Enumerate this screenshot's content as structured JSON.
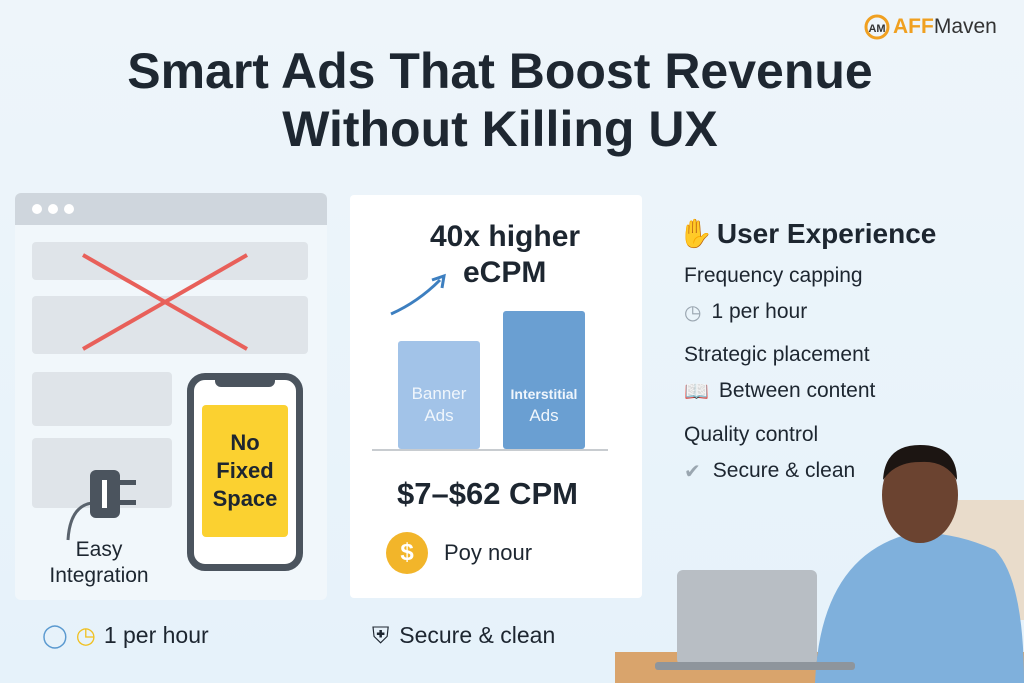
{
  "title": {
    "line1": "Smart Ads That Boost Revenue",
    "line2": "Without Killing UX"
  },
  "logo": {
    "accent": "AFF",
    "rest": "Maven",
    "mark": "AM"
  },
  "left_panel": {
    "phone_label": "No Fixed Space",
    "integration_label1": "Easy",
    "integration_label2": "Integration"
  },
  "middle_card": {
    "headline1": "40x higher",
    "headline2": "eCPM",
    "bars": [
      {
        "label1": "Banner",
        "label2": "Ads"
      },
      {
        "label1": "Interstitial",
        "label2": "Ads"
      }
    ],
    "cpm_range": "$7–$62 CPM",
    "pay_label": "Poy nour"
  },
  "user_experience": {
    "heading": "User Experience",
    "items": [
      {
        "title": "Frequency capping",
        "detail": "1 per hour",
        "icon": "clock-icon"
      },
      {
        "title": "Strategic placement",
        "detail": "Between content",
        "icon": "book-icon"
      },
      {
        "title": "Quality control",
        "detail": "Secure & clean",
        "icon": "shield-check-icon"
      }
    ]
  },
  "footer": {
    "left": "1 per hour",
    "right": "Secure & clean"
  },
  "colors": {
    "accent": "#f0a020",
    "cross": "#e8605a",
    "yellow": "#fbd130",
    "bar_light": "#a2c3e8",
    "bar_dark": "#6a9fd2"
  }
}
